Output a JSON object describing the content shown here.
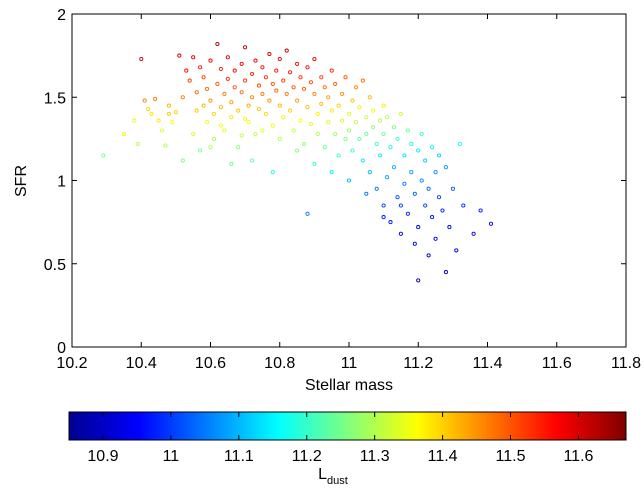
{
  "chart_data": {
    "type": "scatter",
    "xlabel": "Stellar mass",
    "ylabel": "SFR",
    "xlim": [
      10.2,
      11.8
    ],
    "ylim": [
      0,
      2
    ],
    "xticks": [
      "10.2",
      "10.4",
      "10.6",
      "10.8",
      "11",
      "11.2",
      "11.4",
      "11.6",
      "11.8"
    ],
    "yticks": [
      "0",
      "0.5",
      "1",
      "1.5",
      "2"
    ],
    "grid": false,
    "marker": "open-circle",
    "colormap": "jet",
    "colorbar": {
      "label_main": "L",
      "label_sub": "dust",
      "range": [
        10.85,
        11.67
      ],
      "ticks": [
        "10.9",
        "11",
        "11.1",
        "11.2",
        "11.3",
        "11.4",
        "11.5",
        "11.6"
      ],
      "placement": "bottom"
    },
    "points": [
      [
        10.29,
        1.15,
        11.25
      ],
      [
        10.35,
        1.28,
        11.36
      ],
      [
        10.38,
        1.36,
        11.34
      ],
      [
        10.39,
        1.22,
        11.3
      ],
      [
        10.4,
        1.73,
        11.6
      ],
      [
        10.41,
        1.48,
        11.46
      ],
      [
        10.42,
        1.43,
        11.4
      ],
      [
        10.43,
        1.4,
        11.38
      ],
      [
        10.44,
        1.49,
        11.47
      ],
      [
        10.45,
        1.36,
        11.38
      ],
      [
        10.46,
        1.3,
        11.33
      ],
      [
        10.47,
        1.21,
        11.3
      ],
      [
        10.48,
        1.45,
        11.42
      ],
      [
        10.49,
        1.35,
        11.36
      ],
      [
        10.5,
        1.41,
        11.4
      ],
      [
        10.51,
        1.75,
        11.6
      ],
      [
        10.52,
        1.5,
        11.47
      ],
      [
        10.53,
        1.66,
        11.56
      ],
      [
        10.54,
        1.6,
        11.52
      ],
      [
        10.55,
        1.74,
        11.62
      ],
      [
        10.55,
        1.28,
        11.33
      ],
      [
        10.56,
        1.53,
        11.49
      ],
      [
        10.56,
        1.42,
        11.41
      ],
      [
        10.57,
        1.68,
        11.55
      ],
      [
        10.57,
        1.18,
        11.25
      ],
      [
        10.58,
        1.45,
        11.42
      ],
      [
        10.58,
        1.62,
        11.52
      ],
      [
        10.59,
        1.35,
        11.36
      ],
      [
        10.59,
        1.55,
        11.48
      ],
      [
        10.6,
        1.48,
        11.45
      ],
      [
        10.6,
        1.72,
        11.58
      ],
      [
        10.61,
        1.4,
        11.39
      ],
      [
        10.61,
        1.25,
        11.29
      ],
      [
        10.62,
        1.82,
        11.64
      ],
      [
        10.62,
        1.58,
        11.5
      ],
      [
        10.63,
        1.67,
        11.55
      ],
      [
        10.63,
        1.44,
        11.42
      ],
      [
        10.64,
        1.52,
        11.47
      ],
      [
        10.64,
        1.3,
        11.33
      ],
      [
        10.65,
        1.61,
        11.53
      ],
      [
        10.65,
        1.74,
        11.6
      ],
      [
        10.66,
        1.47,
        11.44
      ],
      [
        10.66,
        1.38,
        11.38
      ],
      [
        10.67,
        1.56,
        11.5
      ],
      [
        10.67,
        1.66,
        11.56
      ],
      [
        10.68,
        1.42,
        11.41
      ],
      [
        10.68,
        1.2,
        11.27
      ],
      [
        10.69,
        1.7,
        11.57
      ],
      [
        10.69,
        1.53,
        11.48
      ],
      [
        10.7,
        1.8,
        11.63
      ],
      [
        10.7,
        1.6,
        11.52
      ],
      [
        10.71,
        1.45,
        11.43
      ],
      [
        10.71,
        1.35,
        11.36
      ],
      [
        10.72,
        1.64,
        11.54
      ],
      [
        10.72,
        1.5,
        11.46
      ],
      [
        10.73,
        1.72,
        11.58
      ],
      [
        10.73,
        1.28,
        11.31
      ],
      [
        10.74,
        1.57,
        11.51
      ],
      [
        10.74,
        1.43,
        11.41
      ],
      [
        10.75,
        1.68,
        11.56
      ],
      [
        10.75,
        1.52,
        11.47
      ],
      [
        10.76,
        1.62,
        11.53
      ],
      [
        10.76,
        1.4,
        11.39
      ],
      [
        10.77,
        1.76,
        11.61
      ],
      [
        10.77,
        1.48,
        11.45
      ],
      [
        10.78,
        1.58,
        11.5
      ],
      [
        10.78,
        1.33,
        11.35
      ],
      [
        10.79,
        1.66,
        11.55
      ],
      [
        10.79,
        1.54,
        11.49
      ],
      [
        10.8,
        1.73,
        11.59
      ],
      [
        10.8,
        1.45,
        11.42
      ],
      [
        10.81,
        1.6,
        11.52
      ],
      [
        10.81,
        1.38,
        11.37
      ],
      [
        10.82,
        1.78,
        11.62
      ],
      [
        10.82,
        1.52,
        11.47
      ],
      [
        10.83,
        1.65,
        11.55
      ],
      [
        10.83,
        1.42,
        11.4
      ],
      [
        10.84,
        1.56,
        11.5
      ],
      [
        10.84,
        1.3,
        11.32
      ],
      [
        10.85,
        1.7,
        11.57
      ],
      [
        10.85,
        1.48,
        11.44
      ],
      [
        10.86,
        1.62,
        11.53
      ],
      [
        10.86,
        1.36,
        11.36
      ],
      [
        10.87,
        1.55,
        11.49
      ],
      [
        10.87,
        1.22,
        11.27
      ],
      [
        10.88,
        1.68,
        11.56
      ],
      [
        10.88,
        1.44,
        11.41
      ],
      [
        10.89,
        1.59,
        11.51
      ],
      [
        10.89,
        1.34,
        11.34
      ],
      [
        10.9,
        1.52,
        11.46
      ],
      [
        10.9,
        1.73,
        11.58
      ],
      [
        10.91,
        1.4,
        11.37
      ],
      [
        10.91,
        1.28,
        11.3
      ],
      [
        10.92,
        1.62,
        11.52
      ],
      [
        10.92,
        1.46,
        11.42
      ],
      [
        10.93,
        1.56,
        11.48
      ],
      [
        10.93,
        1.2,
        11.24
      ],
      [
        10.94,
        1.35,
        11.33
      ],
      [
        10.94,
        1.5,
        11.44
      ],
      [
        10.95,
        1.66,
        11.54
      ],
      [
        10.95,
        1.42,
        11.38
      ],
      [
        10.96,
        1.28,
        11.28
      ],
      [
        10.96,
        1.58,
        11.49
      ],
      [
        10.97,
        1.45,
        11.4
      ],
      [
        10.97,
        1.15,
        11.2
      ],
      [
        10.98,
        1.36,
        11.33
      ],
      [
        10.98,
        1.52,
        11.45
      ],
      [
        10.99,
        1.25,
        11.25
      ],
      [
        10.99,
        1.62,
        11.5
      ],
      [
        11.0,
        1.4,
        11.35
      ],
      [
        11.0,
        1.3,
        11.28
      ],
      [
        11.01,
        1.48,
        11.41
      ],
      [
        11.01,
        1.18,
        11.2
      ],
      [
        11.02,
        1.56,
        11.46
      ],
      [
        11.02,
        1.35,
        11.31
      ],
      [
        11.03,
        1.25,
        11.23
      ],
      [
        11.03,
        1.44,
        11.37
      ],
      [
        11.04,
        1.6,
        11.48
      ],
      [
        11.04,
        1.12,
        11.14
      ],
      [
        11.05,
        1.38,
        11.32
      ],
      [
        11.05,
        1.28,
        11.24
      ],
      [
        11.06,
        1.5,
        11.42
      ],
      [
        11.06,
        1.05,
        11.1
      ],
      [
        11.07,
        1.32,
        11.27
      ],
      [
        11.07,
        1.42,
        11.35
      ],
      [
        11.08,
        1.22,
        11.2
      ],
      [
        11.08,
        0.95,
        11.05
      ],
      [
        11.09,
        1.36,
        11.3
      ],
      [
        11.09,
        1.15,
        11.15
      ],
      [
        11.1,
        1.45,
        11.38
      ],
      [
        11.1,
        1.28,
        11.24
      ],
      [
        11.1,
        0.85,
        11.0
      ],
      [
        11.11,
        1.02,
        11.08
      ],
      [
        11.11,
        1.38,
        11.31
      ],
      [
        11.12,
        1.2,
        11.18
      ],
      [
        11.12,
        0.75,
        10.97
      ],
      [
        11.13,
        1.32,
        11.26
      ],
      [
        11.13,
        1.08,
        11.1
      ],
      [
        11.14,
        0.9,
        11.02
      ],
      [
        11.14,
        1.25,
        11.2
      ],
      [
        11.15,
        1.4,
        11.33
      ],
      [
        11.15,
        0.68,
        10.94
      ],
      [
        11.16,
        1.15,
        11.14
      ],
      [
        11.16,
        0.98,
        11.05
      ],
      [
        11.17,
        1.3,
        11.24
      ],
      [
        11.17,
        0.8,
        10.98
      ],
      [
        11.18,
        1.05,
        11.08
      ],
      [
        11.18,
        1.22,
        11.18
      ],
      [
        11.19,
        0.92,
        11.03
      ],
      [
        11.19,
        0.62,
        10.92
      ],
      [
        11.2,
        1.18,
        11.15
      ],
      [
        11.2,
        0.72,
        10.95
      ],
      [
        11.21,
        1.0,
        11.06
      ],
      [
        11.21,
        1.28,
        11.21
      ],
      [
        11.22,
        0.85,
        11.0
      ],
      [
        11.22,
        1.12,
        11.11
      ],
      [
        11.23,
        0.55,
        10.9
      ],
      [
        11.23,
        0.95,
        11.03
      ],
      [
        11.24,
        1.2,
        11.16
      ],
      [
        11.24,
        0.78,
        10.97
      ],
      [
        11.25,
        1.05,
        11.07
      ],
      [
        11.25,
        0.65,
        10.93
      ],
      [
        11.26,
        0.9,
        11.01
      ],
      [
        11.26,
        1.15,
        11.12
      ],
      [
        11.27,
        0.82,
        10.98
      ],
      [
        11.28,
        1.08,
        11.08
      ],
      [
        11.28,
        0.45,
        10.88
      ],
      [
        11.29,
        0.72,
        10.95
      ],
      [
        11.3,
        0.95,
        11.02
      ],
      [
        11.31,
        0.58,
        10.91
      ],
      [
        11.32,
        1.22,
        11.17
      ],
      [
        11.33,
        0.85,
        10.99
      ],
      [
        11.36,
        0.68,
        10.93
      ],
      [
        11.38,
        0.82,
        10.97
      ],
      [
        11.41,
        0.74,
        10.95
      ],
      [
        10.7,
        1.37,
        11.37
      ],
      [
        10.75,
        1.3,
        11.33
      ],
      [
        10.8,
        1.25,
        11.3
      ],
      [
        10.85,
        1.18,
        11.26
      ],
      [
        10.9,
        1.1,
        11.2
      ],
      [
        10.95,
        1.05,
        11.15
      ],
      [
        11.0,
        1.0,
        11.1
      ],
      [
        11.05,
        0.92,
        11.04
      ],
      [
        11.1,
        0.78,
        10.97
      ],
      [
        11.15,
        0.85,
        11.0
      ],
      [
        11.2,
        0.4,
        10.87
      ],
      [
        10.66,
        1.1,
        11.24
      ],
      [
        10.72,
        1.12,
        11.23
      ],
      [
        10.78,
        1.05,
        11.18
      ],
      [
        10.6,
        1.2,
        11.3
      ],
      [
        10.52,
        1.12,
        11.25
      ],
      [
        10.48,
        1.4,
        11.4
      ],
      [
        10.63,
        1.33,
        11.35
      ],
      [
        10.69,
        1.27,
        11.31
      ],
      [
        10.88,
        0.8,
        11.05
      ]
    ]
  }
}
